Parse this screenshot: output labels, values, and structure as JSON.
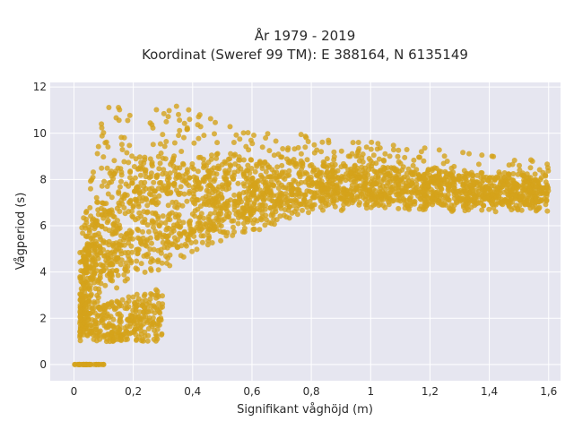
{
  "chart_data": {
    "type": "scatter",
    "title_line1": "År 1979 - 2019",
    "title_line2": "Koordinat (Sweref 99 TM): E 388164, N 6135149",
    "xlabel": "Signifikant våghöjd (m)",
    "ylabel": "Vågperiod (s)",
    "xlim": [
      -0.08,
      1.64
    ],
    "ylim": [
      -0.7,
      12.2
    ],
    "x_ticks": [
      0,
      0.2,
      0.4,
      0.6,
      0.8,
      1,
      1.2,
      1.4,
      1.6
    ],
    "x_tick_labels": [
      "0",
      "0,2",
      "0,4",
      "0,6",
      "0,8",
      "1",
      "1,2",
      "1,4",
      "1,6"
    ],
    "y_ticks": [
      0,
      2,
      4,
      6,
      8,
      10,
      12
    ],
    "y_tick_labels": [
      "0",
      "2",
      "4",
      "6",
      "8",
      "10",
      "12"
    ],
    "grid": true,
    "plot_bg": "#e6e6f0",
    "grid_color": "#ffffff",
    "marker_color": "#d4a21a",
    "marker_opacity": 0.8,
    "data_summary": {
      "zero_period_points_x_range": [
        0.0,
        0.1
      ],
      "main_cloud": "dense band from Hs≈0.02–1.6 m, period ≈1–12 s; lower envelope rises from ≈1 s at Hs≈0 to ≈6.5 s at Hs≈1.6; upper envelope ≈11.5 s at Hs≈0.1–0.3 falling to ≈8.8 s at Hs≈1.6",
      "n_points_rendered": 2600
    }
  }
}
